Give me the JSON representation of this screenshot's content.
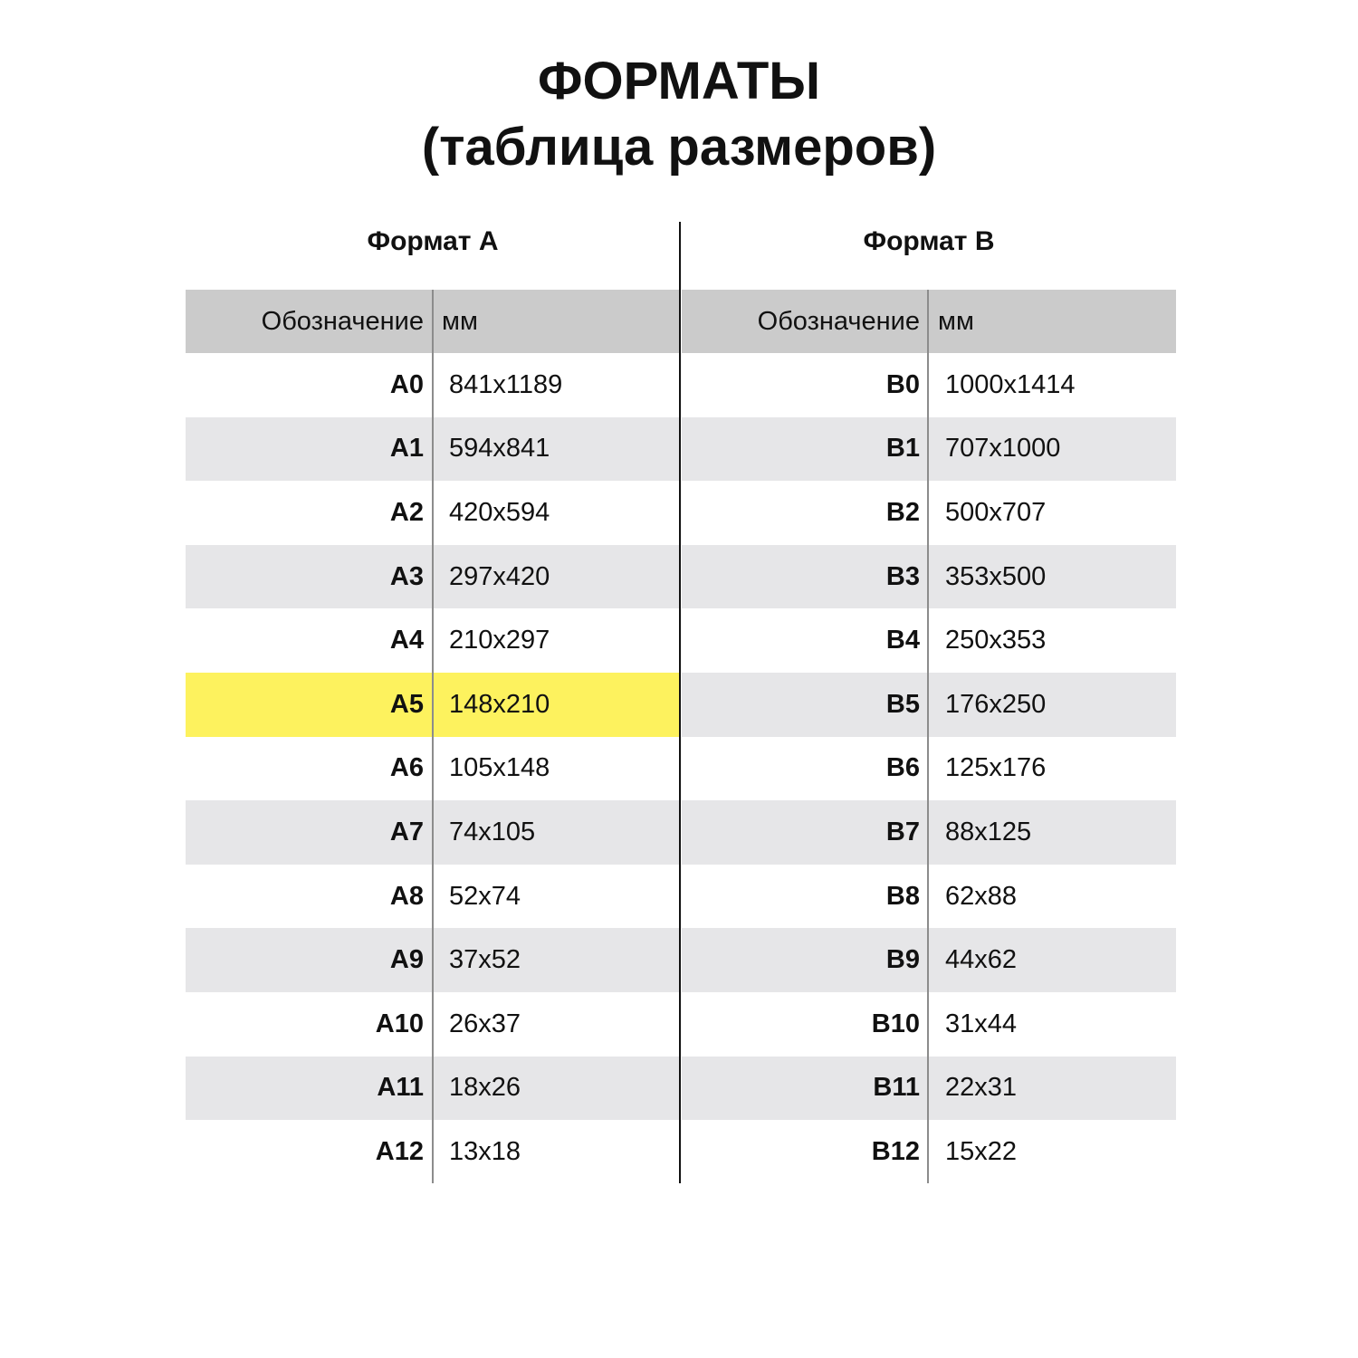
{
  "title_line1": "ФОРМАТЫ",
  "title_line2": "(таблица размеров)",
  "highlight_color": "#fdf25e",
  "format_a": {
    "heading": "Формат А",
    "col_code": "Обозначение",
    "col_dim": "мм",
    "highlighted": "A5",
    "rows": [
      {
        "code": "A0",
        "dim": "841x1189"
      },
      {
        "code": "A1",
        "dim": "594x841"
      },
      {
        "code": "A2",
        "dim": "420x594"
      },
      {
        "code": "A3",
        "dim": "297x420"
      },
      {
        "code": "A4",
        "dim": "210x297"
      },
      {
        "code": "A5",
        "dim": "148x210"
      },
      {
        "code": "A6",
        "dim": "105x148"
      },
      {
        "code": "A7",
        "dim": "74x105"
      },
      {
        "code": "A8",
        "dim": "52x74"
      },
      {
        "code": "A9",
        "dim": "37x52"
      },
      {
        "code": "A10",
        "dim": "26x37"
      },
      {
        "code": "A11",
        "dim": "18x26"
      },
      {
        "code": "A12",
        "dim": "13x18"
      }
    ]
  },
  "format_b": {
    "heading": "Формат В",
    "col_code": "Обозначение",
    "col_dim": "мм",
    "rows": [
      {
        "code": "B0",
        "dim": "1000x1414"
      },
      {
        "code": "B1",
        "dim": "707x1000"
      },
      {
        "code": "B2",
        "dim": "500x707"
      },
      {
        "code": "B3",
        "dim": "353x500"
      },
      {
        "code": "B4",
        "dim": "250x353"
      },
      {
        "code": "B5",
        "dim": "176x250"
      },
      {
        "code": "B6",
        "dim": "125x176"
      },
      {
        "code": "B7",
        "dim": "88x125"
      },
      {
        "code": "B8",
        "dim": "62x88"
      },
      {
        "code": "B9",
        "dim": "44x62"
      },
      {
        "code": "B10",
        "dim": "31x44"
      },
      {
        "code": "B11",
        "dim": "22x31"
      },
      {
        "code": "B12",
        "dim": "15x22"
      }
    ]
  }
}
